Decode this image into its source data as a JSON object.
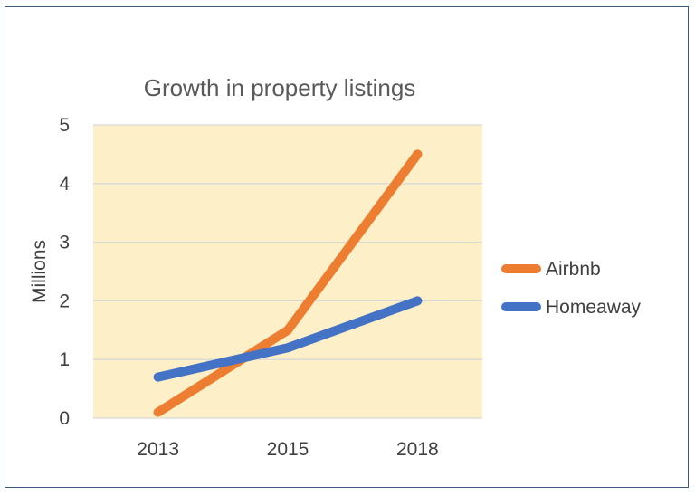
{
  "chart_data": {
    "type": "line",
    "title": "Growth in property listings",
    "xlabel": "",
    "ylabel": "Millions",
    "categories": [
      "2013",
      "2015",
      "2018"
    ],
    "ylim": [
      0,
      5
    ],
    "yticks": [
      "0",
      "1",
      "2",
      "3",
      "4",
      "5"
    ],
    "grid": true,
    "legend_position": "right",
    "plot_background": "#fdefc7",
    "series": [
      {
        "name": "Airbnb",
        "values": [
          0.1,
          1.5,
          4.5
        ],
        "color": "#ed7d31"
      },
      {
        "name": "Homeaway",
        "values": [
          0.7,
          1.2,
          2.0
        ],
        "color": "#4472c4"
      }
    ]
  }
}
